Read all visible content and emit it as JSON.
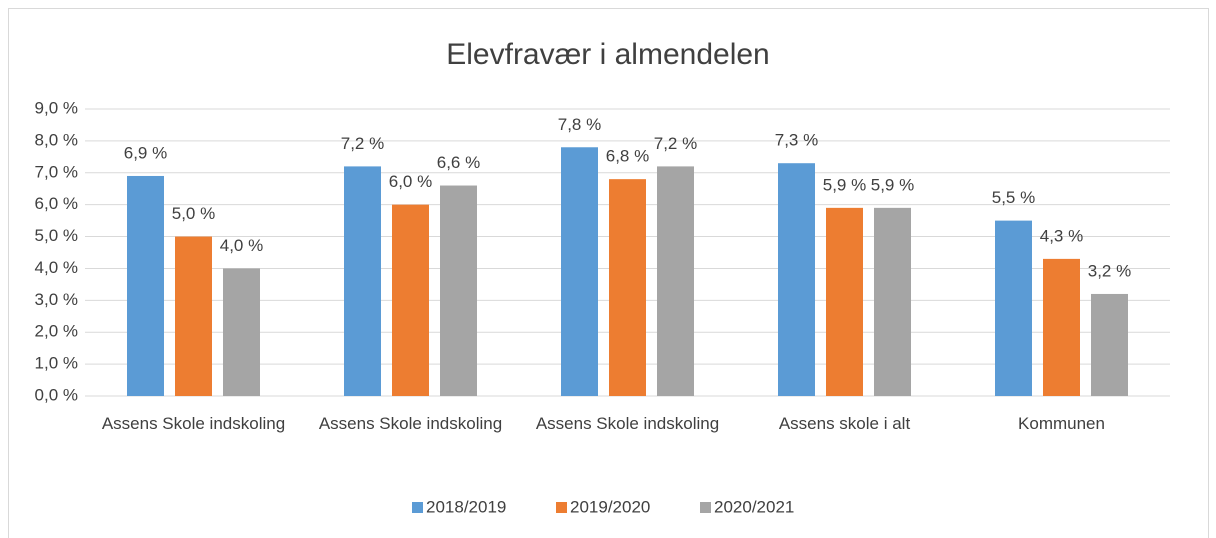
{
  "chart_data": {
    "type": "bar",
    "title": "Elevfravær i almendelen",
    "categories": [
      "Assens Skole indskoling",
      "Assens Skole indskoling",
      "Assens Skole indskoling",
      "Assens skole i alt",
      "Kommunen"
    ],
    "series": [
      {
        "name": "2018/2019",
        "color": "#5b9bd5",
        "values": [
          6.9,
          7.2,
          7.8,
          7.3,
          5.5
        ],
        "value_labels": [
          "6,9 %",
          "7,2 %",
          "7,8 %",
          "7,3 %",
          "5,5 %"
        ]
      },
      {
        "name": "2019/2020",
        "color": "#ed7d31",
        "values": [
          5.0,
          6.0,
          6.8,
          5.9,
          4.3
        ],
        "value_labels": [
          "5,0 %",
          "6,0 %",
          "6,8 %",
          "5,9 %",
          "4,3 %"
        ]
      },
      {
        "name": "2020/2021",
        "color": "#a5a5a5",
        "values": [
          4.0,
          6.6,
          7.2,
          5.9,
          3.2
        ],
        "value_labels": [
          "4,0 %",
          "6,6 %",
          "7,2 %",
          "5,9 %",
          "3,2 %"
        ]
      }
    ],
    "ylim": [
      0,
      9
    ],
    "yticks": [
      {
        "value": 0,
        "label": "0,0 %"
      },
      {
        "value": 1,
        "label": "1,0 %"
      },
      {
        "value": 2,
        "label": "2,0 %"
      },
      {
        "value": 3,
        "label": "3,0 %"
      },
      {
        "value": 4,
        "label": "4,0 %"
      },
      {
        "value": 5,
        "label": "5,0 %"
      },
      {
        "value": 6,
        "label": "6,0 %"
      },
      {
        "value": 7,
        "label": "7,0 %"
      },
      {
        "value": 8,
        "label": "8,0 %"
      },
      {
        "value": 9,
        "label": "9,0 %"
      }
    ],
    "grid": true,
    "legend": "bottom"
  }
}
